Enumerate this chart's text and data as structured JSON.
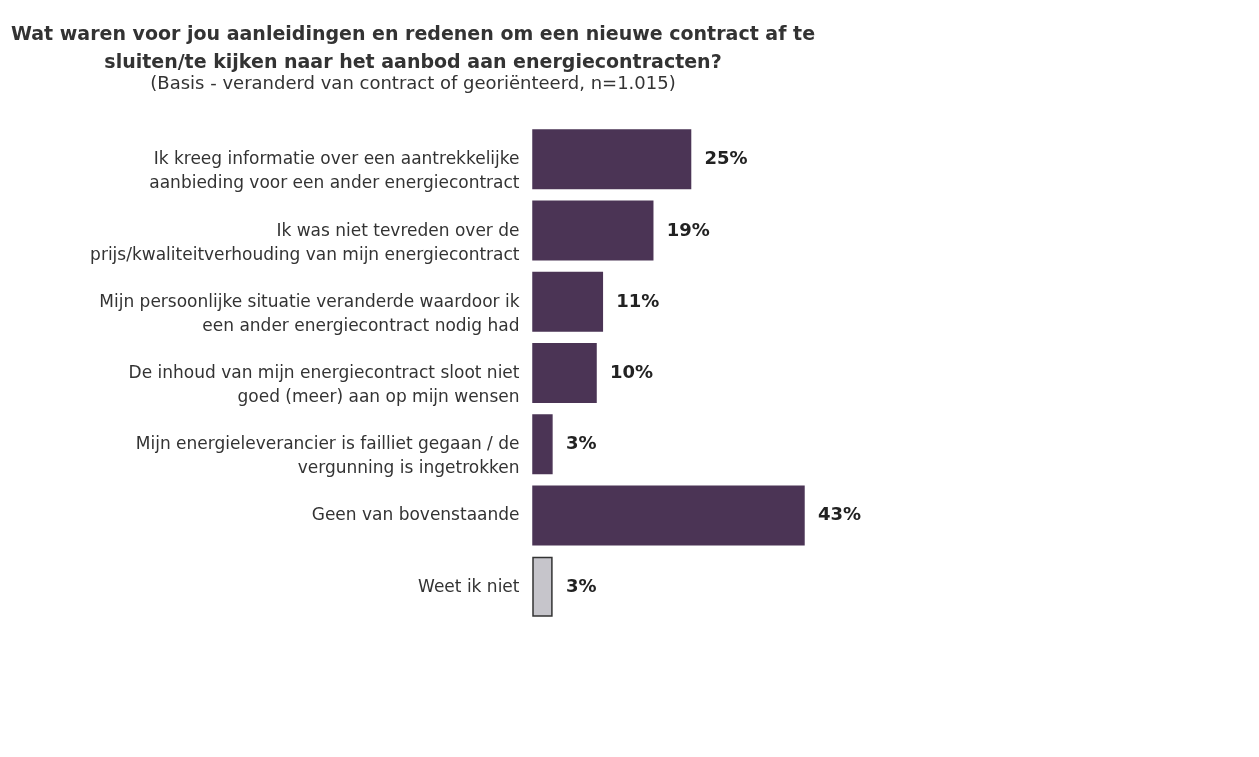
{
  "chart_data": {
    "type": "bar",
    "orientation": "horizontal",
    "title": "Wat waren voor jou aanleidingen en redenen om een nieuwe contract af te\nsluiten/te kijken naar het aanbod aan energiecontracten?",
    "subtitle": "(Basis - veranderd van contract of georiënteerd, n=1.015)",
    "categories": [
      "Ik kreeg informatie over een aantrekkelijke\naanbieding voor een ander energiecontract",
      "Ik was niet tevreden over de\nprijs/kwaliteitverhouding van mijn energiecontract",
      "Mijn persoonlijke situatie veranderde waardoor ik\neen ander energiecontract nodig had",
      "De inhoud van mijn energiecontract sloot niet\ngoed (meer) aan op mijn wensen",
      "Mijn energieleverancier is failliet gegaan / de\nvergunning is ingetrokken",
      "Geen van bovenstaande",
      "Weet ik niet"
    ],
    "values": [
      25,
      19,
      11,
      10,
      3,
      43,
      3
    ],
    "value_labels": [
      "25%",
      "19%",
      "11%",
      "10%",
      "3%",
      "43%",
      "3%"
    ],
    "colors": [
      "#4b3455",
      "#4b3455",
      "#4b3455",
      "#4b3455",
      "#4b3455",
      "#4b3455",
      "#c6c5cb"
    ],
    "grid": false
  }
}
